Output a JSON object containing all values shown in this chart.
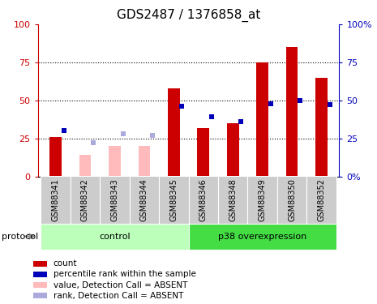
{
  "title": "GDS2487 / 1376858_at",
  "samples": [
    "GSM88341",
    "GSM88342",
    "GSM88343",
    "GSM88344",
    "GSM88345",
    "GSM88346",
    "GSM88348",
    "GSM88349",
    "GSM88350",
    "GSM88352"
  ],
  "red_values": [
    26,
    0,
    0,
    0,
    58,
    32,
    35,
    75,
    85,
    65
  ],
  "blue_values": [
    30,
    0,
    0,
    0,
    46,
    39,
    36,
    48,
    50,
    47
  ],
  "pink_values": [
    0,
    14,
    20,
    20,
    0,
    0,
    0,
    0,
    0,
    0
  ],
  "lblue_values": [
    0,
    22,
    28,
    27,
    0,
    0,
    0,
    0,
    0,
    0
  ],
  "absent": [
    true,
    true,
    true,
    true,
    false,
    false,
    false,
    false,
    false,
    false
  ],
  "absent_blue": [
    true,
    true,
    true,
    true,
    false,
    false,
    false,
    false,
    false,
    false
  ],
  "sample1_red": 26,
  "sample1_blue": 30,
  "sample1_absent": true,
  "groups": [
    {
      "label": "control",
      "start": 0,
      "end": 4,
      "color": "#bbffbb"
    },
    {
      "label": "p38 overexpression",
      "start": 5,
      "end": 9,
      "color": "#44dd44"
    }
  ],
  "red_color": "#cc0000",
  "blue_color": "#0000bb",
  "pink_color": "#ffbbbb",
  "lightblue_color": "#aaaadd",
  "ylim": [
    0,
    100
  ],
  "grid_vals": [
    25,
    50,
    75
  ],
  "title_fontsize": 11,
  "tick_bg_color": "#cccccc",
  "protocol_label": "protocol",
  "legend_items": [
    {
      "color": "#cc0000",
      "label": "count"
    },
    {
      "color": "#0000bb",
      "label": "percentile rank within the sample"
    },
    {
      "color": "#ffbbbb",
      "label": "value, Detection Call = ABSENT"
    },
    {
      "color": "#aaaadd",
      "label": "rank, Detection Call = ABSENT"
    }
  ]
}
